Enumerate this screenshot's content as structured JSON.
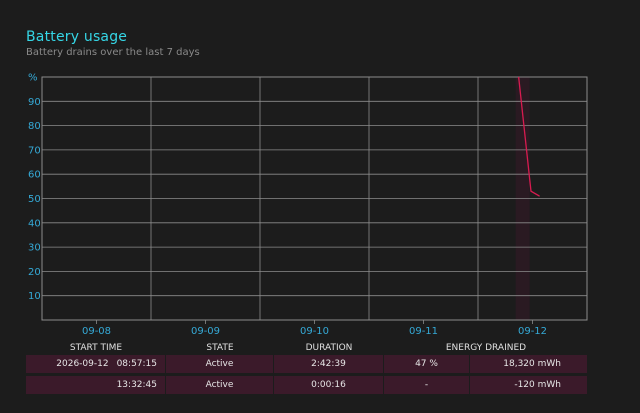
{
  "header": {
    "title": "Battery usage",
    "subtitle": "Battery drains over the last 7 days"
  },
  "chart_data": {
    "type": "line",
    "y_unit_label": "%",
    "y_ticks": [
      10,
      20,
      30,
      40,
      50,
      60,
      70,
      80,
      90
    ],
    "ylim": [
      0,
      100
    ],
    "x_ticks": [
      "09-08",
      "09-09",
      "09-10",
      "09-11",
      "09-12"
    ],
    "grid": true,
    "series": [
      {
        "x": [
          "2026-09-12 08:57",
          "2026-09-12 11:40",
          "2026-09-12 13:32",
          "2026-09-12 13:33"
        ],
        "values": [
          100,
          53,
          51,
          51
        ]
      }
    ],
    "colors": {
      "line": "#d81b50",
      "axis_text": "#35a9d6",
      "grid": "#8c8c8c",
      "active_band": "#2a1a22"
    }
  },
  "table": {
    "headers": [
      "START TIME",
      "STATE",
      "DURATION",
      "ENERGY DRAINED"
    ],
    "rows": [
      {
        "date": "2026-09-12",
        "time": "08:57:15",
        "state": "Active",
        "duration": "2:42:39",
        "percent": "47 %",
        "energy": "18,320 mWh"
      },
      {
        "date": "",
        "time": "13:32:45",
        "state": "Active",
        "duration": "0:00:16",
        "percent": "-",
        "energy": "-120 mWh"
      }
    ]
  }
}
